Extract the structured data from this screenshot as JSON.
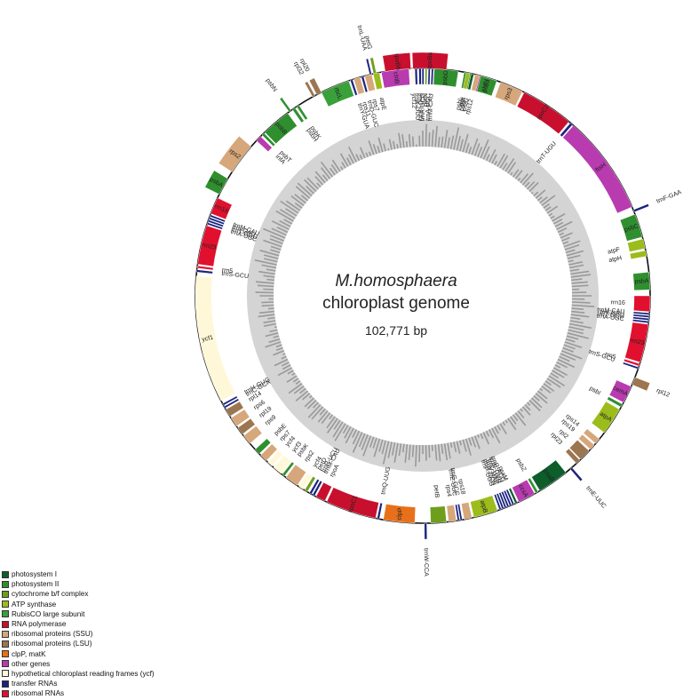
{
  "map": {
    "species": "M.homosphaera",
    "subtitle": "chloroplast genome",
    "length": "102,771 bp"
  },
  "legend": [
    {
      "label": "photosystem I",
      "color": "#0d5e2a"
    },
    {
      "label": "photosystem II",
      "color": "#2f8f2f"
    },
    {
      "label": "cytochrome b/f complex",
      "color": "#6f9e1c"
    },
    {
      "label": "ATP synthase",
      "color": "#9cbc1c"
    },
    {
      "label": "RubisCO large subunit",
      "color": "#3aa03a"
    },
    {
      "label": "RNA polymerase",
      "color": "#c8102e"
    },
    {
      "label": "ribosomal proteins (SSU)",
      "color": "#d6a77a"
    },
    {
      "label": "ribosomal proteins (LSU)",
      "color": "#9b7650"
    },
    {
      "label": "clpP, matK",
      "color": "#e8701a"
    },
    {
      "label": "other genes",
      "color": "#b83bb0"
    },
    {
      "label": "hypothetical chloroplast reading frames (ycf)",
      "color": "#fff8d8"
    },
    {
      "label": "transfer RNAs",
      "color": "#1a237e"
    },
    {
      "label": "ribosomal RNAs",
      "color": "#e0102e"
    }
  ],
  "genes": [
    {
      "name": "trnL-UAA",
      "side": "out",
      "start": -13.5,
      "end": -13.0,
      "cat": 11
    },
    {
      "name": "petG",
      "side": "out",
      "start": -12.5,
      "end": -11.8,
      "cat": 2
    },
    {
      "name": "rpoBb",
      "side": "out",
      "start": -9.5,
      "end": -3.0,
      "cat": 5
    },
    {
      "name": "rpoBa",
      "side": "out",
      "start": -2.5,
      "end": 6.0,
      "cat": 5
    },
    {
      "name": "chlN",
      "side": "in",
      "start": 14.0,
      "end": 19.0,
      "cat": 9
    },
    {
      "name": "psbL",
      "side": "in",
      "start": 10.5,
      "end": 11.2,
      "cat": 1
    },
    {
      "name": "psbF",
      "side": "in",
      "start": 11.6,
      "end": 12.3,
      "cat": 1
    },
    {
      "name": "rps3",
      "side": "in",
      "start": 20.0,
      "end": 26.0,
      "cat": 6
    },
    {
      "name": "rpoC2",
      "side": "in",
      "start": 26.5,
      "end": 40.0,
      "cat": 5
    },
    {
      "name": "trnT-UGU",
      "side": "in",
      "start": 40.5,
      "end": 41.2,
      "cat": 11
    },
    {
      "name": "ftsH",
      "side": "in",
      "start": 41.5,
      "end": 67.0,
      "cat": 9
    },
    {
      "name": "trnF-GAA",
      "side": "out",
      "start": 67.8,
      "end": 68.4,
      "cat": 11
    },
    {
      "name": "psbC",
      "side": "in",
      "start": 69.0,
      "end": 75.0,
      "cat": 1
    },
    {
      "name": "atpF",
      "side": "in",
      "start": 75.5,
      "end": 78.0,
      "cat": 3
    },
    {
      "name": "atpH",
      "side": "in",
      "start": 78.5,
      "end": 80.0,
      "cat": 3
    },
    {
      "name": "psbA",
      "side": "in",
      "start": 84.0,
      "end": 88.5,
      "cat": 1
    },
    {
      "name": "rrn16",
      "side": "in",
      "start": 90.0,
      "end": 94.0,
      "cat": 12
    },
    {
      "name": "trnM-CAU",
      "side": "in",
      "start": 94.3,
      "end": 94.8,
      "cat": 11
    },
    {
      "name": "trnI-GAU",
      "side": "in",
      "start": 95.0,
      "end": 95.5,
      "cat": 11
    },
    {
      "name": "trnT-GGU",
      "side": "in",
      "start": 95.7,
      "end": 96.2,
      "cat": 11
    },
    {
      "name": "trnA-UGC",
      "side": "in",
      "start": 96.4,
      "end": 96.9,
      "cat": 11
    },
    {
      "name": "rrn23",
      "side": "in",
      "start": 97.2,
      "end": 107.0,
      "cat": 12
    },
    {
      "name": "rrn5",
      "side": "in",
      "start": 107.4,
      "end": 108.0,
      "cat": 12
    },
    {
      "name": "trnS-GCU",
      "side": "in",
      "start": 108.3,
      "end": 108.8,
      "cat": 11
    },
    {
      "name": "rpl12",
      "side": "out",
      "start": 111.0,
      "end": 113.0,
      "cat": 7
    },
    {
      "name": "cemA",
      "side": "in",
      "start": 113.5,
      "end": 118.0,
      "cat": 9
    },
    {
      "name": "psbI",
      "side": "in",
      "start": 118.5,
      "end": 119.3,
      "cat": 1
    },
    {
      "name": "atpA",
      "side": "in",
      "start": 120.0,
      "end": 127.0,
      "cat": 3
    },
    {
      "name": "rps14",
      "side": "in",
      "start": 129.0,
      "end": 130.5,
      "cat": 6
    },
    {
      "name": "rps19",
      "side": "in",
      "start": 131.0,
      "end": 132.5,
      "cat": 6
    },
    {
      "name": "rpl2",
      "side": "in",
      "start": 133.0,
      "end": 136.0,
      "cat": 7
    },
    {
      "name": "rpl23",
      "side": "in",
      "start": 136.3,
      "end": 137.5,
      "cat": 7
    },
    {
      "name": "trnE-UUC",
      "side": "out",
      "start": 139.0,
      "end": 139.6,
      "cat": 11
    },
    {
      "name": "psaB",
      "side": "in",
      "start": 141.0,
      "end": 149.0,
      "cat": 0
    },
    {
      "name": "psbZ",
      "side": "in",
      "start": 149.5,
      "end": 150.2,
      "cat": 1
    },
    {
      "name": "ccsA",
      "side": "in",
      "start": 150.5,
      "end": 155.0,
      "cat": 9
    },
    {
      "name": "psaM",
      "side": "in",
      "start": 155.4,
      "end": 156.0,
      "cat": 0
    },
    {
      "name": "trnR-ACG",
      "side": "in",
      "start": 156.3,
      "end": 156.8,
      "cat": 11
    },
    {
      "name": "trnN-GUU",
      "side": "in",
      "start": 157.0,
      "end": 157.5,
      "cat": 11
    },
    {
      "name": "trnL-UAG",
      "side": "in",
      "start": 157.7,
      "end": 158.2,
      "cat": 11
    },
    {
      "name": "trnV-UAC",
      "side": "in",
      "start": 158.4,
      "end": 158.9,
      "cat": 11
    },
    {
      "name": "trnR-CCG",
      "side": "in",
      "start": 159.1,
      "end": 159.6,
      "cat": 11
    },
    {
      "name": "trnP-UGG",
      "side": "in",
      "start": 159.8,
      "end": 160.3,
      "cat": 11
    },
    {
      "name": "atpB",
      "side": "in",
      "start": 160.8,
      "end": 167.0,
      "cat": 3
    },
    {
      "name": "rps18",
      "side": "in",
      "start": 167.5,
      "end": 169.5,
      "cat": 6
    },
    {
      "name": "trnG-GCC",
      "side": "in",
      "start": 170.0,
      "end": 170.5,
      "cat": 11
    },
    {
      "name": "trnE-UUC",
      "side": "in",
      "start": 170.7,
      "end": 171.2,
      "cat": 11
    },
    {
      "name": "rps4",
      "side": "in",
      "start": 171.5,
      "end": 173.5,
      "cat": 6
    },
    {
      "name": "petB",
      "side": "in",
      "start": 174.0,
      "end": 178.0,
      "cat": 2
    },
    {
      "name": "trnW-CCA",
      "side": "out",
      "start": 179.0,
      "end": 179.6,
      "cat": 11
    },
    {
      "name": "clpP",
      "side": "in",
      "start": 182.0,
      "end": 190.0,
      "cat": 8
    },
    {
      "name": "trnQ-UUG",
      "side": "in",
      "start": 191.0,
      "end": 191.6,
      "cat": 11
    },
    {
      "name": "rpoC1",
      "side": "in",
      "start": 192.0,
      "end": 205.0,
      "cat": 5
    },
    {
      "name": "rpoA",
      "side": "in",
      "start": 205.5,
      "end": 208.0,
      "cat": 5
    },
    {
      "name": "trnM-CAU",
      "side": "in",
      "start": 208.4,
      "end": 209.0,
      "cat": 11
    },
    {
      "name": "trnR-UCU",
      "side": "in",
      "start": 209.3,
      "end": 209.9,
      "cat": 11
    },
    {
      "name": "petD",
      "side": "in",
      "start": 210.5,
      "end": 211.3,
      "cat": 2
    },
    {
      "name": "ycf4",
      "side": "in",
      "start": 211.7,
      "end": 213.0,
      "cat": 10
    },
    {
      "name": "rps2",
      "side": "in",
      "start": 213.5,
      "end": 217.0,
      "cat": 6
    },
    {
      "name": "psbK",
      "side": "in",
      "start": 217.5,
      "end": 218.2,
      "cat": 1
    },
    {
      "name": "ycf3",
      "side": "in",
      "start": 218.6,
      "end": 221.0,
      "cat": 10
    },
    {
      "name": "ycf4",
      "side": "in",
      "start": 221.5,
      "end": 223.0,
      "cat": 10
    },
    {
      "name": "rps7",
      "side": "in",
      "start": 223.5,
      "end": 225.5,
      "cat": 6
    },
    {
      "name": "psbE",
      "side": "in",
      "start": 226.0,
      "end": 227.5,
      "cat": 1
    },
    {
      "name": "rps9",
      "side": "in",
      "start": 229.5,
      "end": 232.0,
      "cat": 6
    },
    {
      "name": "rpl19",
      "side": "in",
      "start": 232.5,
      "end": 234.5,
      "cat": 7
    },
    {
      "name": "rps6",
      "side": "in",
      "start": 235.0,
      "end": 237.5,
      "cat": 6
    },
    {
      "name": "rpl14",
      "side": "in",
      "start": 238.0,
      "end": 240.0,
      "cat": 7
    },
    {
      "name": "trnC-GCA",
      "side": "in",
      "start": 240.4,
      "end": 240.9,
      "cat": 11
    },
    {
      "name": "trnH-GUG",
      "side": "in",
      "start": 241.2,
      "end": 241.7,
      "cat": 11
    },
    {
      "name": "ycf1",
      "side": "in",
      "start": 242.5,
      "end": 275.0,
      "cat": 10
    },
    {
      "name": "trnS-GCU",
      "side": "in",
      "start": 276.0,
      "end": 276.6,
      "cat": 11
    },
    {
      "name": "rrn5",
      "side": "in",
      "start": 277.0,
      "end": 277.6,
      "cat": 12
    },
    {
      "name": "rrn23",
      "side": "in",
      "start": 278.0,
      "end": 288.0,
      "cat": 12
    },
    {
      "name": "trnA-UGC",
      "side": "in",
      "start": 288.3,
      "end": 288.8,
      "cat": 11
    },
    {
      "name": "trnT-GGU",
      "side": "in",
      "start": 289.0,
      "end": 289.5,
      "cat": 11
    },
    {
      "name": "trnI-GAU",
      "side": "in",
      "start": 289.7,
      "end": 290.2,
      "cat": 11
    },
    {
      "name": "trnM-CAU",
      "side": "in",
      "start": 290.4,
      "end": 290.9,
      "cat": 11
    },
    {
      "name": "rrn16",
      "side": "in",
      "start": 291.2,
      "end": 295.5,
      "cat": 12
    },
    {
      "name": "psbA",
      "side": "out",
      "start": 296.5,
      "end": 301.0,
      "cat": 1
    },
    {
      "name": "rps2",
      "side": "out",
      "start": 303.0,
      "end": 311.0,
      "cat": 6
    },
    {
      "name": "infA",
      "side": "in",
      "start": 313.0,
      "end": 314.5,
      "cat": 9
    },
    {
      "name": "psbT",
      "side": "in",
      "start": 315.0,
      "end": 315.7,
      "cat": 1
    },
    {
      "name": "psbB",
      "side": "in",
      "start": 316.0,
      "end": 323.5,
      "cat": 1
    },
    {
      "name": "psbN",
      "side": "out",
      "start": 324.0,
      "end": 324.6,
      "cat": 1
    },
    {
      "name": "psbH",
      "side": "in",
      "start": 325.0,
      "end": 325.8,
      "cat": 1
    },
    {
      "name": "psbK",
      "side": "in",
      "start": 326.3,
      "end": 327.0,
      "cat": 1
    },
    {
      "name": "rpl32",
      "side": "out",
      "start": 331.0,
      "end": 331.7,
      "cat": 7
    },
    {
      "name": "rpl20",
      "side": "out",
      "start": 332.2,
      "end": 333.5,
      "cat": 7
    },
    {
      "name": "rbcL",
      "side": "in",
      "start": 333.5,
      "end": 341.0,
      "cat": 4
    },
    {
      "name": "trnY-GUA",
      "side": "in",
      "start": 341.4,
      "end": 342.0,
      "cat": 11
    },
    {
      "name": "rps11",
      "side": "in",
      "start": 342.3,
      "end": 344.0,
      "cat": 6
    },
    {
      "name": "trnD-GUC",
      "side": "in",
      "start": 344.3,
      "end": 344.9,
      "cat": 11
    },
    {
      "name": "rps7",
      "side": "in",
      "start": 345.2,
      "end": 347.0,
      "cat": 6
    },
    {
      "name": "atpE",
      "side": "in",
      "start": 347.4,
      "end": 349.0,
      "cat": 3
    },
    {
      "name": "chlB",
      "side": "in",
      "start": 349.5,
      "end": 356.5,
      "cat": 9
    },
    {
      "name": "ycf12",
      "side": "in",
      "start": 357.0,
      "end": 357.7,
      "cat": 10
    },
    {
      "name": "trnK-UUU",
      "side": "in",
      "start": 358.0,
      "end": 358.6,
      "cat": 11
    },
    {
      "name": "trnQ-UUG",
      "side": "in",
      "start": 359.0,
      "end": 359.6,
      "cat": 11
    },
    {
      "name": "trnR-UCG",
      "side": "in",
      "start": 359.8,
      "end": 360.3,
      "cat": 11
    },
    {
      "name": "petN",
      "side": "in",
      "start": 360.6,
      "end": 361.1,
      "cat": 2
    },
    {
      "name": "trnA-UGC",
      "side": "in",
      "start": 361.4,
      "end": 361.9,
      "cat": 11
    },
    {
      "name": "trnM-CAU",
      "side": "in",
      "start": 362.2,
      "end": 362.7,
      "cat": 11
    },
    {
      "name": "psbD",
      "side": "in",
      "start": 362.9,
      "end": 369.0,
      "cat": 1
    },
    {
      "name": "atpI",
      "side": "in",
      "start": 371.0,
      "end": 372.0,
      "cat": 3
    },
    {
      "name": "psaJ",
      "side": "in",
      "start": 372.3,
      "end": 373.0,
      "cat": 0
    },
    {
      "name": "rps12",
      "side": "in",
      "start": 373.3,
      "end": 374.5,
      "cat": 6
    },
    {
      "name": "psbJ",
      "side": "in",
      "start": 374.8,
      "end": 379.0,
      "cat": 1
    }
  ]
}
